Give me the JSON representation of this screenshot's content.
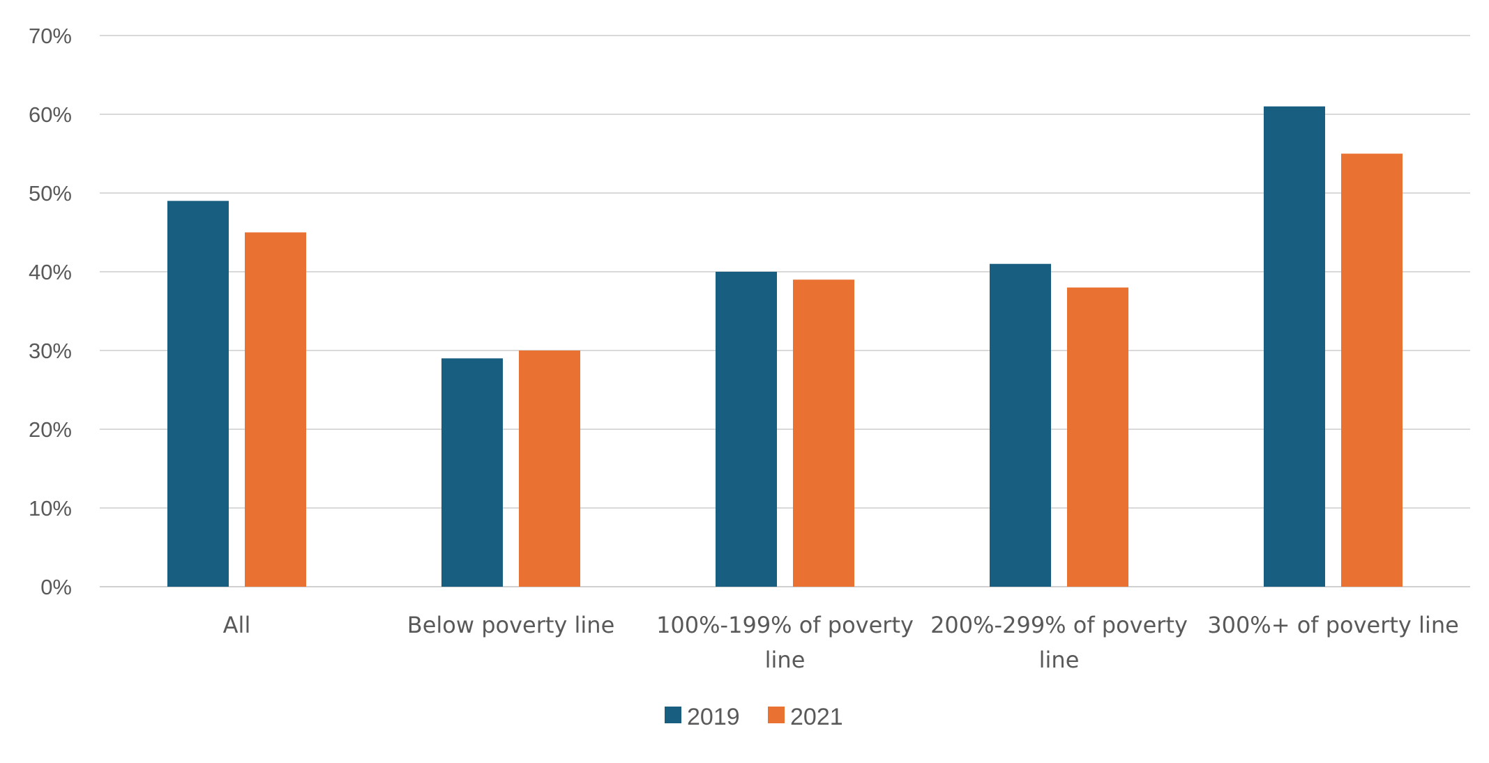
{
  "chart_data": {
    "type": "bar",
    "title": "",
    "xlabel": "",
    "ylabel": "",
    "ylim": [
      0,
      70
    ],
    "yticks": [
      0,
      10,
      20,
      30,
      40,
      50,
      60,
      70
    ],
    "ytick_labels": [
      "0%",
      "10%",
      "20%",
      "30%",
      "40%",
      "50%",
      "60%",
      "70%"
    ],
    "grid": true,
    "legend_position": "bottom",
    "categories": [
      [
        "All"
      ],
      [
        "Below poverty line"
      ],
      [
        "100%-199% of poverty",
        "line"
      ],
      [
        "200%-299% of poverty",
        "line"
      ],
      [
        "300%+ of poverty line"
      ]
    ],
    "series": [
      {
        "name": "2019",
        "color": "#175e81",
        "values": [
          49,
          29,
          40,
          41,
          61
        ]
      },
      {
        "name": "2021",
        "color": "#e97132",
        "values": [
          45,
          30,
          39,
          38,
          55
        ]
      }
    ]
  }
}
